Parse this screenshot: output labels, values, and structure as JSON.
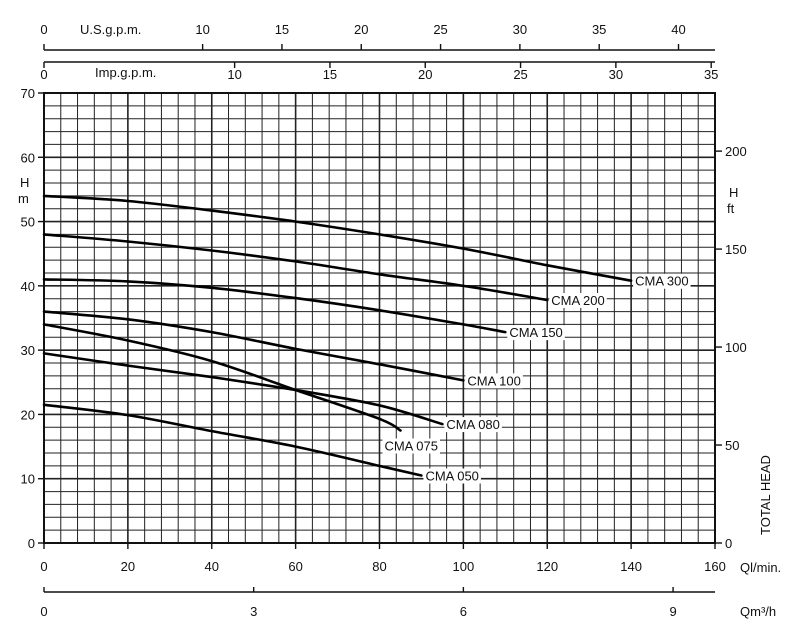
{
  "chart_data": {
    "type": "line",
    "title": "",
    "x_axis": {
      "label": "Ql/min.",
      "range": [
        0,
        160
      ],
      "ticks": [
        0,
        20,
        40,
        60,
        80,
        100,
        120,
        140,
        160
      ]
    },
    "x_axis_bottom": {
      "label": "Qm³/h",
      "range": [
        0,
        9.6
      ],
      "ticks": [
        0,
        3,
        6,
        9
      ]
    },
    "x_axis_top_us": {
      "label": "U.S.g.p.m.",
      "range": [
        0,
        42.3
      ],
      "ticks": [
        0,
        10,
        15,
        20,
        25,
        30,
        35,
        40
      ]
    },
    "x_axis_top_imp": {
      "label": "Imp.g.p.m.",
      "range": [
        0,
        35.2
      ],
      "ticks": [
        0,
        10,
        15,
        20,
        25,
        30,
        35
      ]
    },
    "y_axis_left": {
      "label_line1": "H",
      "label_line2": "m",
      "range": [
        0,
        70
      ],
      "ticks": [
        0,
        10,
        20,
        30,
        40,
        50,
        60,
        70
      ]
    },
    "y_axis_right": {
      "label_line1": "H",
      "label_line2": "ft",
      "title": "TOTAL HEAD",
      "range": [
        0,
        229.66
      ],
      "ticks": [
        0,
        50,
        100,
        150,
        200
      ]
    },
    "grid": true,
    "series": [
      {
        "name": "CMA 300",
        "x": [
          0,
          20,
          40,
          60,
          80,
          100,
          120,
          140
        ],
        "y": [
          54,
          53.2,
          51.7,
          50,
          48,
          45.8,
          43.2,
          40.8
        ]
      },
      {
        "name": "CMA 200",
        "x": [
          0,
          20,
          40,
          60,
          80,
          100,
          120
        ],
        "y": [
          48,
          46.9,
          45.5,
          43.8,
          41.8,
          40,
          37.8
        ]
      },
      {
        "name": "CMA 150",
        "x": [
          0,
          20,
          40,
          60,
          80,
          100,
          110
        ],
        "y": [
          41,
          40.7,
          39.7,
          38.1,
          36.2,
          34,
          32.8
        ]
      },
      {
        "name": "CMA 100",
        "x": [
          0,
          20,
          40,
          60,
          80,
          100
        ],
        "y": [
          36,
          34.8,
          32.8,
          30.2,
          27.8,
          25.3
        ]
      },
      {
        "name": "CMA 080",
        "x": [
          0,
          20,
          40,
          60,
          80,
          95
        ],
        "y": [
          29.5,
          27.6,
          25.8,
          23.8,
          21.4,
          18.5
        ]
      },
      {
        "name": "CMA 075",
        "x": [
          0,
          20,
          40,
          60,
          80,
          85
        ],
        "y": [
          34,
          31.5,
          28.3,
          23.8,
          19.3,
          17.5
        ]
      },
      {
        "name": "CMA 050",
        "x": [
          0,
          20,
          40,
          60,
          80,
          90
        ],
        "y": [
          21.5,
          19.9,
          17.4,
          15,
          12,
          10.5
        ]
      }
    ]
  }
}
